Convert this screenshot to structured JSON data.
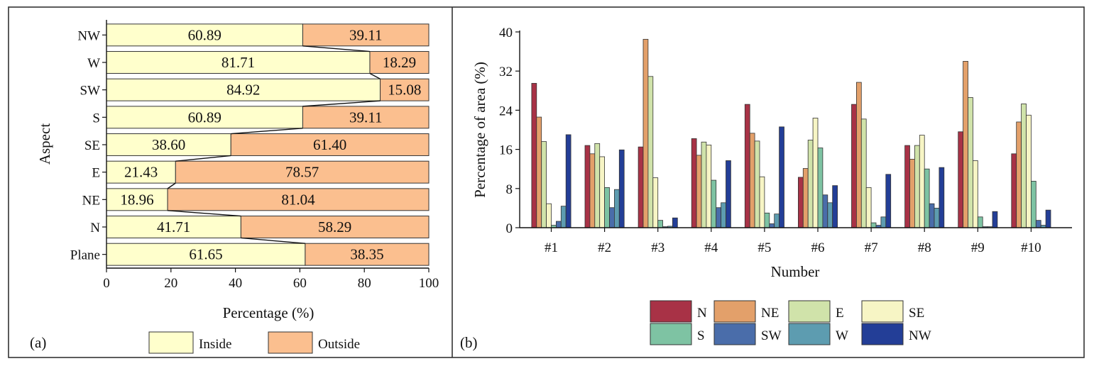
{
  "figure": {
    "panel_a_label": "(a)",
    "panel_b_label": "(b)"
  },
  "chart_data": [
    {
      "type": "bar",
      "orientation": "horizontal",
      "stacked": true,
      "categories": [
        "NW",
        "W",
        "SW",
        "S",
        "SE",
        "E",
        "NE",
        "N",
        "Plane"
      ],
      "series": [
        {
          "name": "Inside",
          "color": "#FFFFCC",
          "values": [
            60.89,
            81.71,
            84.92,
            60.89,
            38.6,
            21.43,
            18.96,
            41.71,
            61.65
          ],
          "labels": [
            "60.89",
            "81.71",
            "84.92",
            "60.89",
            "38.60",
            "21.43",
            "18.96",
            "41.71",
            "61.65"
          ]
        },
        {
          "name": "Outside",
          "color": "#FBBF8F",
          "values": [
            39.11,
            18.29,
            15.08,
            39.11,
            61.4,
            78.57,
            81.04,
            58.29,
            38.35
          ],
          "labels": [
            "39.11",
            "18.29",
            "15.08",
            "39.11",
            "61.40",
            "78.57",
            "81.04",
            "58.29",
            "38.35"
          ]
        }
      ],
      "xlabel": "Percentage (%)",
      "ylabel": "Aspect",
      "xlim": [
        0,
        100
      ],
      "xticks": [
        0,
        20,
        40,
        60,
        80,
        100
      ],
      "xtick_labels": [
        "0",
        "20",
        "40",
        "60",
        "80",
        "100"
      ],
      "legend": [
        "Inside",
        "Outside"
      ],
      "legend_position": "bottom",
      "connector_lines": true
    },
    {
      "type": "bar",
      "orientation": "vertical",
      "categories": [
        "#1",
        "#2",
        "#3",
        "#4",
        "#5",
        "#6",
        "#7",
        "#8",
        "#9",
        "#10"
      ],
      "series": [
        {
          "name": "N",
          "color": "#A83246",
          "values": [
            29.5,
            16.8,
            16.5,
            18.2,
            25.2,
            10.3,
            25.2,
            16.8,
            19.6,
            15.1
          ]
        },
        {
          "name": "NE",
          "color": "#E3A06A",
          "values": [
            22.6,
            15.1,
            38.5,
            14.8,
            19.3,
            12.1,
            29.7,
            14.0,
            34.0,
            21.6
          ]
        },
        {
          "name": "E",
          "color": "#D0E3AA",
          "values": [
            17.6,
            17.2,
            30.9,
            17.5,
            17.7,
            17.9,
            22.2,
            16.8,
            26.6,
            25.3
          ]
        },
        {
          "name": "SE",
          "color": "#F7F5C5",
          "values": [
            4.9,
            14.5,
            10.2,
            16.9,
            10.4,
            22.4,
            8.2,
            18.9,
            13.7,
            23.0
          ]
        },
        {
          "name": "S",
          "color": "#7EC3A3",
          "values": [
            0.5,
            8.2,
            1.5,
            9.7,
            3.0,
            16.3,
            1.0,
            12.0,
            2.2,
            9.5
          ]
        },
        {
          "name": "SW",
          "color": "#4A6DAA",
          "values": [
            1.3,
            4.1,
            0.2,
            4.1,
            0.8,
            6.7,
            0.5,
            4.9,
            0.2,
            1.5
          ]
        },
        {
          "name": "W",
          "color": "#5D9CB0",
          "values": [
            4.4,
            7.8,
            0.3,
            5.1,
            2.8,
            5.1,
            2.2,
            4.0,
            0.2,
            0.5
          ]
        },
        {
          "name": "NW",
          "color": "#233E97",
          "values": [
            19.0,
            15.9,
            2.0,
            13.7,
            20.6,
            8.6,
            10.9,
            12.3,
            3.3,
            3.6
          ]
        }
      ],
      "xlabel": "Number",
      "ylabel": "Percentage of area (%)",
      "ylim": [
        0,
        40
      ],
      "yticks": [
        0,
        8,
        16,
        24,
        32,
        40
      ],
      "ytick_labels": [
        "0",
        "8",
        "16",
        "24",
        "32",
        "40"
      ],
      "legend": [
        "N",
        "NE",
        "E",
        "SE",
        "S",
        "SW",
        "W",
        "NW"
      ],
      "legend_position": "bottom"
    }
  ]
}
